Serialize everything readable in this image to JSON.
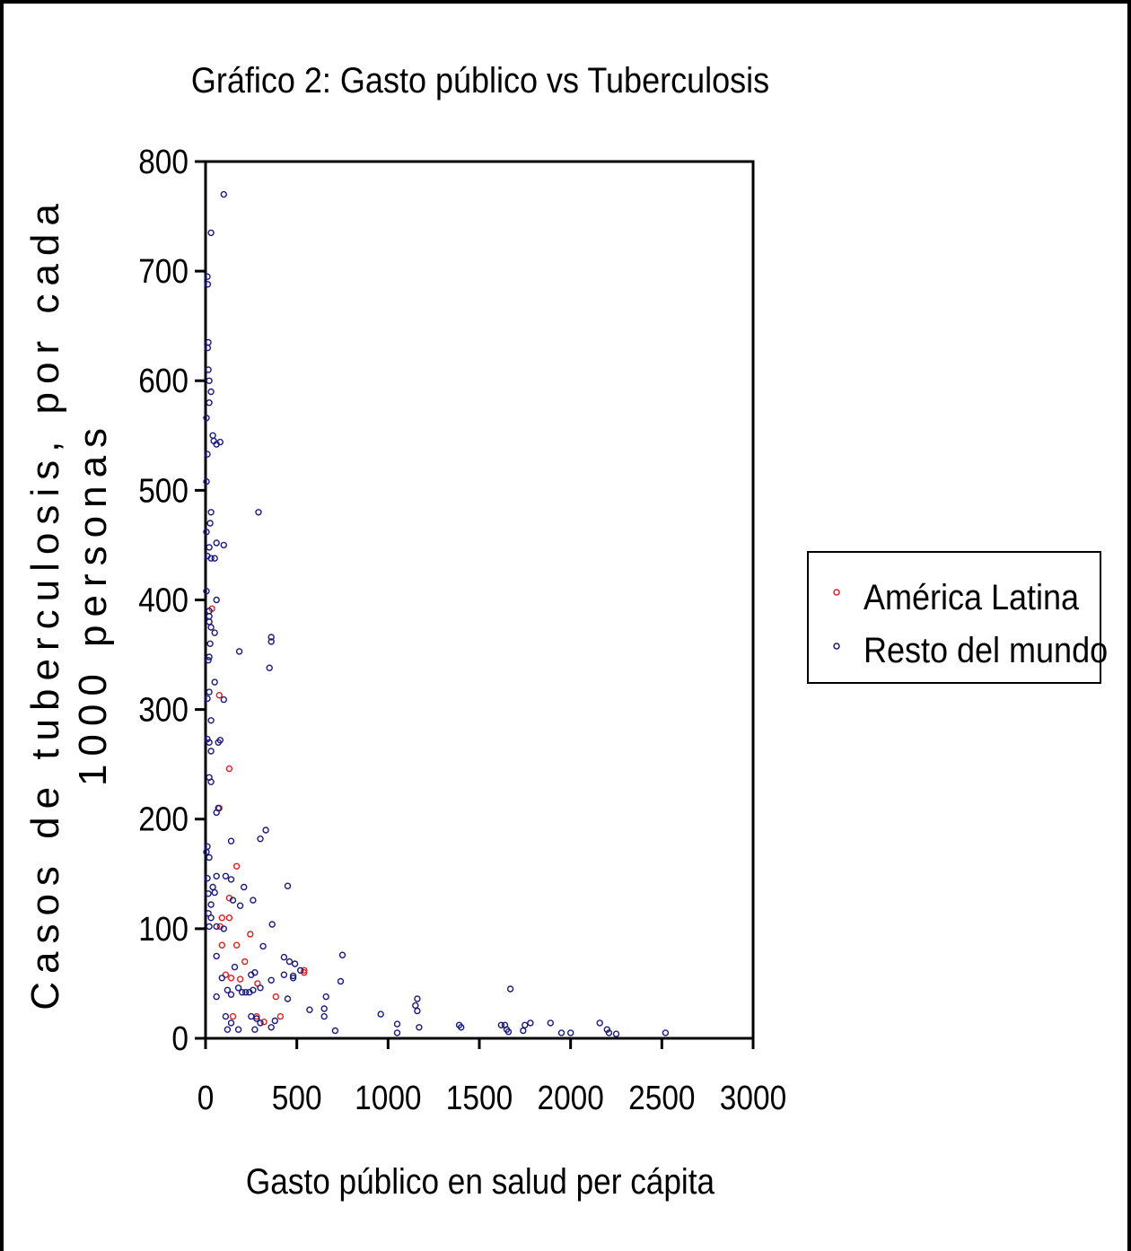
{
  "chart_data": {
    "type": "scatter",
    "title": "Gráfico 2: Gasto público vs Tuberculosis",
    "xlabel": "Gasto público en salud per cápita",
    "ylabel_line1": "Casos de tuberculosis, por cada",
    "ylabel_line2": "1000 personas",
    "xlim": [
      0,
      3000
    ],
    "ylim": [
      0,
      800
    ],
    "x_ticks": [
      0,
      500,
      1000,
      1500,
      2000,
      2500,
      3000
    ],
    "y_ticks": [
      0,
      100,
      200,
      300,
      400,
      500,
      600,
      700,
      800
    ],
    "grid": false,
    "legend_position": "right",
    "series": [
      {
        "name": "América Latina",
        "color": "#e02020",
        "points": [
          [
            35,
            392
          ],
          [
            75,
            313
          ],
          [
            130,
            246
          ],
          [
            75,
            210
          ],
          [
            170,
            157
          ],
          [
            130,
            128
          ],
          [
            90,
            110
          ],
          [
            130,
            110
          ],
          [
            80,
            102
          ],
          [
            90,
            85
          ],
          [
            170,
            85
          ],
          [
            245,
            95
          ],
          [
            215,
            70
          ],
          [
            110,
            58
          ],
          [
            140,
            55
          ],
          [
            190,
            54
          ],
          [
            285,
            50
          ],
          [
            540,
            62
          ],
          [
            540,
            60
          ],
          [
            385,
            38
          ],
          [
            410,
            20
          ],
          [
            280,
            20
          ],
          [
            150,
            20
          ],
          [
            320,
            15
          ]
        ]
      },
      {
        "name": "Resto del mundo",
        "color": "#1a1a80",
        "points": [
          [
            100,
            770
          ],
          [
            30,
            735
          ],
          [
            10,
            695
          ],
          [
            12,
            688
          ],
          [
            15,
            635
          ],
          [
            12,
            630
          ],
          [
            15,
            610
          ],
          [
            20,
            600
          ],
          [
            30,
            590
          ],
          [
            20,
            580
          ],
          [
            5,
            566
          ],
          [
            40,
            550
          ],
          [
            45,
            545
          ],
          [
            60,
            542
          ],
          [
            80,
            544
          ],
          [
            10,
            533
          ],
          [
            5,
            508
          ],
          [
            290,
            480
          ],
          [
            30,
            480
          ],
          [
            25,
            470
          ],
          [
            5,
            462
          ],
          [
            60,
            452
          ],
          [
            100,
            450
          ],
          [
            20,
            448
          ],
          [
            10,
            440
          ],
          [
            30,
            438
          ],
          [
            50,
            438
          ],
          [
            5,
            408
          ],
          [
            60,
            400
          ],
          [
            20,
            390
          ],
          [
            20,
            385
          ],
          [
            20,
            380
          ],
          [
            30,
            375
          ],
          [
            50,
            370
          ],
          [
            360,
            366
          ],
          [
            360,
            362
          ],
          [
            185,
            353
          ],
          [
            20,
            348
          ],
          [
            15,
            345
          ],
          [
            25,
            360
          ],
          [
            350,
            338
          ],
          [
            50,
            325
          ],
          [
            20,
            316
          ],
          [
            10,
            310
          ],
          [
            100,
            309
          ],
          [
            30,
            290
          ],
          [
            10,
            273
          ],
          [
            20,
            270
          ],
          [
            80,
            272
          ],
          [
            70,
            270
          ],
          [
            30,
            262
          ],
          [
            20,
            238
          ],
          [
            30,
            234
          ],
          [
            60,
            206
          ],
          [
            70,
            210
          ],
          [
            330,
            190
          ],
          [
            140,
            180
          ],
          [
            300,
            182
          ],
          [
            10,
            175
          ],
          [
            5,
            170
          ],
          [
            20,
            165
          ],
          [
            110,
            148
          ],
          [
            60,
            148
          ],
          [
            140,
            145
          ],
          [
            10,
            146
          ],
          [
            40,
            138
          ],
          [
            210,
            138
          ],
          [
            450,
            139
          ],
          [
            50,
            133
          ],
          [
            15,
            132
          ],
          [
            260,
            126
          ],
          [
            150,
            126
          ],
          [
            30,
            122
          ],
          [
            190,
            121
          ],
          [
            15,
            114
          ],
          [
            30,
            110
          ],
          [
            365,
            104
          ],
          [
            60,
            102
          ],
          [
            100,
            100
          ],
          [
            20,
            102
          ],
          [
            315,
            84
          ],
          [
            60,
            75
          ],
          [
            430,
            74
          ],
          [
            460,
            70
          ],
          [
            490,
            68
          ],
          [
            750,
            76
          ],
          [
            160,
            65
          ],
          [
            250,
            58
          ],
          [
            270,
            60
          ],
          [
            430,
            58
          ],
          [
            480,
            57
          ],
          [
            520,
            62
          ],
          [
            480,
            55
          ],
          [
            90,
            55
          ],
          [
            360,
            53
          ],
          [
            740,
            52
          ],
          [
            200,
            42
          ],
          [
            120,
            44
          ],
          [
            140,
            40
          ],
          [
            240,
            42
          ],
          [
            260,
            44
          ],
          [
            300,
            46
          ],
          [
            60,
            38
          ],
          [
            450,
            36
          ],
          [
            660,
            38
          ],
          [
            1670,
            45
          ],
          [
            1160,
            36
          ],
          [
            1150,
            30
          ],
          [
            1160,
            25
          ],
          [
            570,
            26
          ],
          [
            650,
            27
          ],
          [
            960,
            22
          ],
          [
            650,
            20
          ],
          [
            180,
            46
          ],
          [
            220,
            42
          ],
          [
            110,
            20
          ],
          [
            250,
            20
          ],
          [
            280,
            18
          ],
          [
            380,
            16
          ],
          [
            140,
            14
          ],
          [
            300,
            14
          ],
          [
            1050,
            13
          ],
          [
            1390,
            12
          ],
          [
            1620,
            12
          ],
          [
            1780,
            14
          ],
          [
            1890,
            14
          ],
          [
            2160,
            14
          ],
          [
            1400,
            10
          ],
          [
            1640,
            12
          ],
          [
            1750,
            12
          ],
          [
            360,
            10
          ],
          [
            120,
            8
          ],
          [
            180,
            8
          ],
          [
            270,
            8
          ],
          [
            710,
            7
          ],
          [
            1050,
            5
          ],
          [
            1170,
            10
          ],
          [
            1650,
            8
          ],
          [
            1660,
            6
          ],
          [
            1740,
            7
          ],
          [
            1950,
            5
          ],
          [
            2000,
            5
          ],
          [
            2200,
            8
          ],
          [
            2210,
            5
          ],
          [
            2250,
            4
          ],
          [
            2520,
            5
          ]
        ]
      }
    ]
  }
}
